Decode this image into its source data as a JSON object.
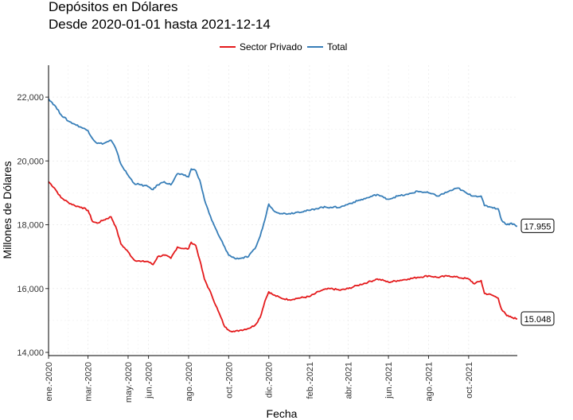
{
  "chart_data": {
    "type": "line",
    "title": "Depósitos en Dólares",
    "subtitle": "Desde 2020-01-01 hasta 2021-12-14",
    "xlabel": "Fecha",
    "ylabel": "Millones de Dólares",
    "x_range": [
      "2020-01-01",
      "2021-12-14"
    ],
    "ylim": [
      13900,
      23000
    ],
    "y_ticks": [
      14000,
      16000,
      18000,
      20000,
      22000
    ],
    "y_tick_labels": [
      "14,000",
      "16,000",
      "18,000",
      "20,000",
      "22,000"
    ],
    "x_ticks": [
      "2020-01-01",
      "2020-03-01",
      "2020-05-01",
      "2020-06-01",
      "2020-08-01",
      "2020-10-01",
      "2020-12-01",
      "2021-02-01",
      "2021-04-01",
      "2021-06-01",
      "2021-08-01",
      "2021-10-01"
    ],
    "x_tick_labels": [
      "ene.-2020",
      "mar.-2020",
      "may.-2020",
      "jun.-2020",
      "ago.-2020",
      "oct.-2020",
      "dic.-2020",
      "feb.-2021",
      "abr.-2021",
      "jun.-2021",
      "ago.-2021",
      "oct.-2021"
    ],
    "grid": true,
    "legend_position": "top",
    "series": [
      {
        "name": "Sector Privado",
        "color": "#e41a1c",
        "end_label": "15.048",
        "points": [
          [
            "2020-01-01",
            19350
          ],
          [
            "2020-01-10",
            19150
          ],
          [
            "2020-01-20",
            18850
          ],
          [
            "2020-01-31",
            18700
          ],
          [
            "2020-02-10",
            18600
          ],
          [
            "2020-02-20",
            18550
          ],
          [
            "2020-03-01",
            18450
          ],
          [
            "2020-03-08",
            18100
          ],
          [
            "2020-03-15",
            18050
          ],
          [
            "2020-03-25",
            18150
          ],
          [
            "2020-04-05",
            18250
          ],
          [
            "2020-04-12",
            17950
          ],
          [
            "2020-04-20",
            17400
          ],
          [
            "2020-05-01",
            17150
          ],
          [
            "2020-05-10",
            16900
          ],
          [
            "2020-05-20",
            16850
          ],
          [
            "2020-05-31",
            16850
          ],
          [
            "2020-06-08",
            16750
          ],
          [
            "2020-06-15",
            17000
          ],
          [
            "2020-06-25",
            17050
          ],
          [
            "2020-07-05",
            16950
          ],
          [
            "2020-07-15",
            17300
          ],
          [
            "2020-07-25",
            17250
          ],
          [
            "2020-08-01",
            17250
          ],
          [
            "2020-08-05",
            17450
          ],
          [
            "2020-08-12",
            17350
          ],
          [
            "2020-08-18",
            16900
          ],
          [
            "2020-08-25",
            16300
          ],
          [
            "2020-09-05",
            15800
          ],
          [
            "2020-09-15",
            15300
          ],
          [
            "2020-09-25",
            14800
          ],
          [
            "2020-10-01",
            14700
          ],
          [
            "2020-10-10",
            14650
          ],
          [
            "2020-10-20",
            14700
          ],
          [
            "2020-10-31",
            14750
          ],
          [
            "2020-11-10",
            14850
          ],
          [
            "2020-11-18",
            15100
          ],
          [
            "2020-11-25",
            15600
          ],
          [
            "2020-12-01",
            15900
          ],
          [
            "2020-12-08",
            15800
          ],
          [
            "2020-12-20",
            15700
          ],
          [
            "2021-01-01",
            15650
          ],
          [
            "2021-01-15",
            15700
          ],
          [
            "2021-02-01",
            15750
          ],
          [
            "2021-02-10",
            15850
          ],
          [
            "2021-02-20",
            15950
          ],
          [
            "2021-03-05",
            16000
          ],
          [
            "2021-03-20",
            15950
          ],
          [
            "2021-04-01",
            16000
          ],
          [
            "2021-04-15",
            16100
          ],
          [
            "2021-05-01",
            16200
          ],
          [
            "2021-05-15",
            16300
          ],
          [
            "2021-05-25",
            16250
          ],
          [
            "2021-06-01",
            16200
          ],
          [
            "2021-06-15",
            16250
          ],
          [
            "2021-07-01",
            16300
          ],
          [
            "2021-07-15",
            16350
          ],
          [
            "2021-08-01",
            16400
          ],
          [
            "2021-08-15",
            16350
          ],
          [
            "2021-09-01",
            16400
          ],
          [
            "2021-09-15",
            16350
          ],
          [
            "2021-10-01",
            16300
          ],
          [
            "2021-10-10",
            16150
          ],
          [
            "2021-10-20",
            16250
          ],
          [
            "2021-10-25",
            15850
          ],
          [
            "2021-11-05",
            15800
          ],
          [
            "2021-11-15",
            15700
          ],
          [
            "2021-11-20",
            15350
          ],
          [
            "2021-11-28",
            15150
          ],
          [
            "2021-12-05",
            15100
          ],
          [
            "2021-12-14",
            15048
          ]
        ]
      },
      {
        "name": "Total",
        "color": "#377eb8",
        "end_label": "17.955",
        "points": [
          [
            "2020-01-01",
            21950
          ],
          [
            "2020-01-10",
            21750
          ],
          [
            "2020-01-20",
            21450
          ],
          [
            "2020-01-31",
            21250
          ],
          [
            "2020-02-10",
            21150
          ],
          [
            "2020-02-20",
            21050
          ],
          [
            "2020-03-01",
            20950
          ],
          [
            "2020-03-08",
            20700
          ],
          [
            "2020-03-15",
            20550
          ],
          [
            "2020-03-25",
            20550
          ],
          [
            "2020-04-05",
            20650
          ],
          [
            "2020-04-12",
            20400
          ],
          [
            "2020-04-20",
            19900
          ],
          [
            "2020-05-01",
            19550
          ],
          [
            "2020-05-10",
            19300
          ],
          [
            "2020-05-20",
            19250
          ],
          [
            "2020-05-31",
            19200
          ],
          [
            "2020-06-08",
            19100
          ],
          [
            "2020-06-15",
            19250
          ],
          [
            "2020-06-25",
            19350
          ],
          [
            "2020-07-05",
            19250
          ],
          [
            "2020-07-15",
            19600
          ],
          [
            "2020-07-25",
            19550
          ],
          [
            "2020-08-01",
            19500
          ],
          [
            "2020-08-05",
            19750
          ],
          [
            "2020-08-12",
            19700
          ],
          [
            "2020-08-18",
            19400
          ],
          [
            "2020-08-25",
            18800
          ],
          [
            "2020-09-05",
            18150
          ],
          [
            "2020-09-15",
            17700
          ],
          [
            "2020-09-25",
            17300
          ],
          [
            "2020-10-01",
            17050
          ],
          [
            "2020-10-10",
            16950
          ],
          [
            "2020-10-20",
            16950
          ],
          [
            "2020-10-31",
            17000
          ],
          [
            "2020-11-10",
            17250
          ],
          [
            "2020-11-18",
            17650
          ],
          [
            "2020-11-25",
            18150
          ],
          [
            "2020-12-01",
            18650
          ],
          [
            "2020-12-08",
            18450
          ],
          [
            "2020-12-20",
            18350
          ],
          [
            "2021-01-01",
            18350
          ],
          [
            "2021-01-15",
            18400
          ],
          [
            "2021-02-01",
            18450
          ],
          [
            "2021-02-10",
            18500
          ],
          [
            "2021-02-20",
            18550
          ],
          [
            "2021-03-05",
            18550
          ],
          [
            "2021-03-20",
            18550
          ],
          [
            "2021-04-01",
            18650
          ],
          [
            "2021-04-15",
            18750
          ],
          [
            "2021-05-01",
            18850
          ],
          [
            "2021-05-15",
            18950
          ],
          [
            "2021-05-25",
            18850
          ],
          [
            "2021-06-01",
            18800
          ],
          [
            "2021-06-15",
            18900
          ],
          [
            "2021-07-01",
            18950
          ],
          [
            "2021-07-15",
            19050
          ],
          [
            "2021-08-01",
            19000
          ],
          [
            "2021-08-15",
            18900
          ],
          [
            "2021-09-01",
            19050
          ],
          [
            "2021-09-15",
            19150
          ],
          [
            "2021-10-01",
            18950
          ],
          [
            "2021-10-10",
            18900
          ],
          [
            "2021-10-20",
            18900
          ],
          [
            "2021-10-25",
            18600
          ],
          [
            "2021-11-05",
            18550
          ],
          [
            "2021-11-15",
            18500
          ],
          [
            "2021-11-20",
            18150
          ],
          [
            "2021-11-28",
            18000
          ],
          [
            "2021-12-05",
            18050
          ],
          [
            "2021-12-14",
            17955
          ]
        ]
      }
    ]
  }
}
